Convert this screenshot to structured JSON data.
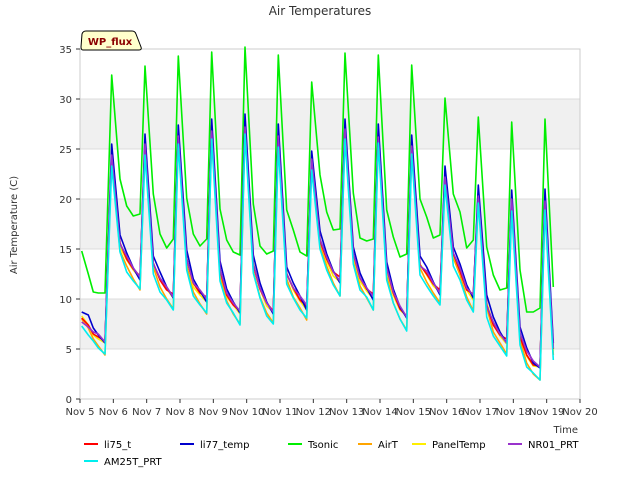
{
  "chart_data": {
    "type": "line",
    "title": "Air Temperatures",
    "xlabel": "Time",
    "ylabel": "Air Temperature (C)",
    "badge": "WP_flux",
    "ylim": [
      0,
      35
    ],
    "yticks": [
      0,
      5,
      10,
      15,
      20,
      25,
      30,
      35
    ],
    "xlim": [
      5,
      20
    ],
    "xticks": [
      {
        "v": 5,
        "label": "Nov 5"
      },
      {
        "v": 6,
        "label": "Nov 6"
      },
      {
        "v": 7,
        "label": "Nov 7"
      },
      {
        "v": 8,
        "label": "Nov 8"
      },
      {
        "v": 9,
        "label": "Nov 9"
      },
      {
        "v": 10,
        "label": "Nov 10"
      },
      {
        "v": 11,
        "label": "Nov 11"
      },
      {
        "v": 12,
        "label": "Nov 12"
      },
      {
        "v": 13,
        "label": "Nov 13"
      },
      {
        "v": 14,
        "label": "Nov 14"
      },
      {
        "v": 15,
        "label": "Nov 15"
      },
      {
        "v": 16,
        "label": "Nov 16"
      },
      {
        "v": 17,
        "label": "Nov 17"
      },
      {
        "v": 18,
        "label": "Nov 18"
      },
      {
        "v": 19,
        "label": "Nov 19"
      },
      {
        "v": 20,
        "label": "Nov 20"
      }
    ],
    "grid": true,
    "band_color": "#f0f0f0",
    "base_x": [
      5.05,
      5.25,
      5.4,
      5.55,
      5.75,
      5.95,
      6.2,
      6.4,
      6.6,
      6.8,
      6.95,
      7.2,
      7.4,
      7.6,
      7.8,
      7.95,
      8.2,
      8.4,
      8.6,
      8.8,
      8.95,
      9.2,
      9.4,
      9.6,
      9.8,
      9.95,
      10.2,
      10.4,
      10.6,
      10.8,
      10.95,
      11.2,
      11.4,
      11.6,
      11.8,
      11.95,
      12.2,
      12.4,
      12.6,
      12.8,
      12.95,
      13.2,
      13.4,
      13.6,
      13.8,
      13.95,
      14.2,
      14.4,
      14.6,
      14.8,
      14.95,
      15.2,
      15.4,
      15.6,
      15.8,
      15.95,
      16.2,
      16.4,
      16.6,
      16.8,
      16.95,
      17.2,
      17.4,
      17.6,
      17.8,
      17.95,
      18.2,
      18.4,
      18.6,
      18.8,
      18.95,
      19.2
    ],
    "series": [
      {
        "name": "li75_t",
        "color": "#ff0000",
        "offsets": [
          0.6,
          0.4,
          0.3,
          0.6,
          0.8,
          0.9,
          0.6,
          0.5,
          0.5,
          0.8,
          0.9,
          0.6,
          0.4,
          0.4,
          1.0,
          0.7,
          0.5,
          0.6,
          0.6,
          1.2,
          0.9,
          0.4,
          0.4,
          0.4,
          0.8,
          0.7,
          0.4,
          0.5,
          0.6,
          0.8,
          0.8,
          0.5,
          0.6,
          0.4,
          0.8,
          0.6,
          0.3,
          0.5,
          0.7,
          1.2,
          0.9,
          0.5,
          0.6,
          0.5,
          1.0,
          1.0,
          0.6,
          0.6,
          0.5,
          0.8,
          0.7,
          0.4,
          0.5,
          0.5,
          0.9,
          0.6,
          0.5,
          0.3,
          0.4,
          1.0,
          0.7,
          0.4,
          0.4,
          0.4,
          1.0,
          0.7,
          0.2,
          0.4,
          0.4,
          0.8,
          0.6,
          0.5
        ]
      },
      {
        "name": "li77_temp",
        "color": "#0000cc",
        "offsets": [
          1.2,
          1.4,
          0.9,
          0.8,
          0.6,
          1.5,
          1.4,
          1.1,
          0.6,
          0.4,
          1.5,
          1.3,
          1.2,
          0.7,
          0.6,
          1.4,
          1.4,
          1.0,
          0.8,
          0.7,
          1.5,
          1.3,
          1.0,
          0.7,
          0.6,
          1.5,
          1.4,
          1.1,
          0.7,
          0.5,
          1.5,
          1.2,
          1.1,
          0.8,
          0.4,
          1.3,
          1.3,
          1.0,
          0.8,
          0.6,
          1.5,
          1.2,
          1.1,
          0.6,
          0.4,
          1.5,
          1.2,
          1.0,
          0.7,
          0.6,
          1.4,
          1.3,
          1.2,
          0.7,
          0.4,
          1.3,
          1.2,
          1.0,
          0.9,
          0.6,
          1.4,
          1.4,
          1.2,
          0.7,
          0.6,
          1.4,
          1.2,
          1.1,
          0.6,
          0.6,
          1.5,
          1.1
        ]
      },
      {
        "name": "Tsonic",
        "color": "#00ee00",
        "offsets": [
          7.3,
          5.5,
          4.5,
          5.0,
          5.6,
          8.4,
          7.0,
          5.8,
          5.8,
          7.0,
          8.3,
          7.5,
          5.0,
          4.6,
          6.5,
          8.3,
          6.6,
          5.5,
          5.3,
          7.0,
          8.2,
          6.5,
          5.9,
          5.7,
          6.4,
          8.2,
          6.5,
          4.8,
          5.5,
          6.8,
          8.4,
          6.9,
          6.4,
          5.2,
          5.8,
          8.2,
          6.9,
          5.2,
          4.9,
          6.0,
          8.1,
          6.6,
          4.6,
          5.3,
          6.5,
          8.4,
          6.4,
          6.2,
          5.7,
          7.0,
          8.4,
          7.0,
          6.2,
          5.1,
          6.4,
          8.1,
          6.5,
          6.2,
          4.6,
          6.4,
          8.2,
          6.2,
          5.4,
          4.9,
          6.1,
          8.2,
          6.9,
          4.7,
          5.7,
          6.6,
          8.5,
          6.7
        ]
      },
      {
        "name": "AirT",
        "color": "#ffa500",
        "offsets": [
          0.5,
          0.1,
          -0.2,
          -0.3,
          -0.6,
          0.2,
          -0.2,
          -0.2,
          -0.5,
          -0.6,
          0.4,
          0.2,
          -0.3,
          -0.5,
          -0.5,
          0.2,
          -0.1,
          -0.3,
          -0.5,
          -0.5,
          0.0,
          -0.1,
          -0.2,
          -0.5,
          -0.5,
          0.4,
          -0.2,
          -0.3,
          -0.4,
          -0.4,
          0.5,
          0.0,
          -0.3,
          -0.4,
          -0.6,
          0.5,
          -0.1,
          -0.2,
          -0.4,
          -0.7,
          0.3,
          0.0,
          -0.2,
          -0.4,
          -0.6,
          0.3,
          -0.1,
          -0.4,
          -0.5,
          -0.6,
          0.2,
          0.1,
          -0.3,
          -0.4,
          -0.4,
          0.1,
          0.1,
          -0.1,
          -0.3,
          -0.7,
          0.3,
          0.2,
          -0.3,
          -0.4,
          -0.5,
          0.5,
          -0.1,
          -0.4,
          -0.5,
          -0.6,
          0.4,
          -0.1
        ]
      },
      {
        "name": "PanelTemp",
        "color": "#ffee00",
        "offsets": [
          0.8,
          0.4,
          0.2,
          0.4,
          0.6,
          0.5,
          0.2,
          0.4,
          0.4,
          0.6,
          0.6,
          0.4,
          0.5,
          0.5,
          0.6,
          0.9,
          0.6,
          0.2,
          0.4,
          0.7,
          0.7,
          0.5,
          0.2,
          0.4,
          0.5,
          0.8,
          0.6,
          0.5,
          0.3,
          0.7,
          0.9,
          0.6,
          0.4,
          0.3,
          0.4,
          0.9,
          0.5,
          0.3,
          0.3,
          0.7,
          0.9,
          0.3,
          0.3,
          0.3,
          0.5,
          0.8,
          0.4,
          0.4,
          0.4,
          0.8,
          0.8,
          0.5,
          0.4,
          0.3,
          0.7,
          0.5,
          0.3,
          0.4,
          0.4,
          0.4,
          0.7,
          0.6,
          0.5,
          0.3,
          0.5,
          0.6,
          0.3,
          0.3,
          0.3,
          0.7,
          0.6,
          0.3
        ]
      },
      {
        "name": "NR01_PRT",
        "color": "#9932cc",
        "offsets": [
          0.2,
          0.2,
          0.5,
          0.9,
          0.7,
          0.4,
          0.5,
          0.8,
          0.6,
          0.7,
          0.5,
          0.5,
          0.6,
          0.7,
          0.7,
          0.3,
          0.5,
          0.6,
          0.9,
          1.0,
          0.3,
          0.6,
          0.6,
          0.6,
          0.8,
          0.2,
          0.5,
          0.6,
          0.6,
          0.7,
          0.3,
          0.5,
          0.6,
          0.8,
          0.9,
          0.5,
          0.5,
          0.7,
          0.7,
          0.8,
          0.5,
          0.6,
          0.6,
          0.6,
          0.8,
          0.2,
          0.6,
          0.7,
          0.8,
          0.7,
          0.3,
          0.3,
          0.8,
          0.6,
          0.6,
          0.2,
          0.6,
          0.6,
          0.6,
          0.9,
          0.3,
          0.3,
          0.7,
          0.5,
          0.6,
          0.5,
          0.6,
          0.8,
          0.8,
          0.7,
          0.3,
          0.6
        ]
      },
      {
        "name": "AM25T_PRT",
        "color": "#00eeee",
        "offsets": [
          -0.2,
          -0.6,
          -0.4,
          -0.5,
          -0.5,
          -0.7,
          -0.3,
          -0.8,
          -0.7,
          -0.5,
          -0.6,
          -0.5,
          -0.8,
          -0.6,
          -0.6,
          -0.5,
          -0.6,
          -0.7,
          -0.6,
          -0.4,
          -0.5,
          -0.7,
          -0.4,
          -0.4,
          -0.6,
          -0.5,
          -0.4,
          -0.4,
          -0.7,
          -0.5,
          -0.8,
          -0.5,
          -0.4,
          -0.6,
          -0.4,
          -0.6,
          -0.5,
          -0.6,
          -0.6,
          -0.7,
          -0.5,
          -0.5,
          -0.6,
          -0.3,
          -0.6,
          -0.4,
          -0.6,
          -0.4,
          -0.5,
          -0.7,
          -0.5,
          -0.6,
          -0.7,
          -0.7,
          -0.6,
          -0.6,
          -0.7,
          -0.6,
          -0.6,
          -0.8,
          -0.4,
          -0.8,
          -0.7,
          -0.7,
          -0.7,
          -0.7,
          -0.6,
          -0.8,
          -0.4,
          -0.6,
          -0.6,
          -0.6
        ]
      }
    ],
    "base_y": [
      7.5,
      7.0,
      6.2,
      5.6,
      5.0,
      24.0,
      15.0,
      13.5,
      12.5,
      11.5,
      25.0,
      13.0,
      11.5,
      10.5,
      9.5,
      26.0,
      13.5,
      11.0,
      10.0,
      9.0,
      26.5,
      12.5,
      10.0,
      9.0,
      8.0,
      27.0,
      13.0,
      10.5,
      9.0,
      8.0,
      26.0,
      12.0,
      10.5,
      9.5,
      8.5,
      23.5,
      15.5,
      13.5,
      12.0,
      11.0,
      26.5,
      14.0,
      11.5,
      10.5,
      9.5,
      26.0,
      12.5,
      10.0,
      8.5,
      7.5,
      25.0,
      13.0,
      12.0,
      11.0,
      10.0,
      22.0,
      14.0,
      12.5,
      10.5,
      9.5,
      20.0,
      9.0,
      7.0,
      6.0,
      5.0,
      19.5,
      6.0,
      4.0,
      3.0,
      2.5,
      19.5,
      4.5
    ]
  }
}
